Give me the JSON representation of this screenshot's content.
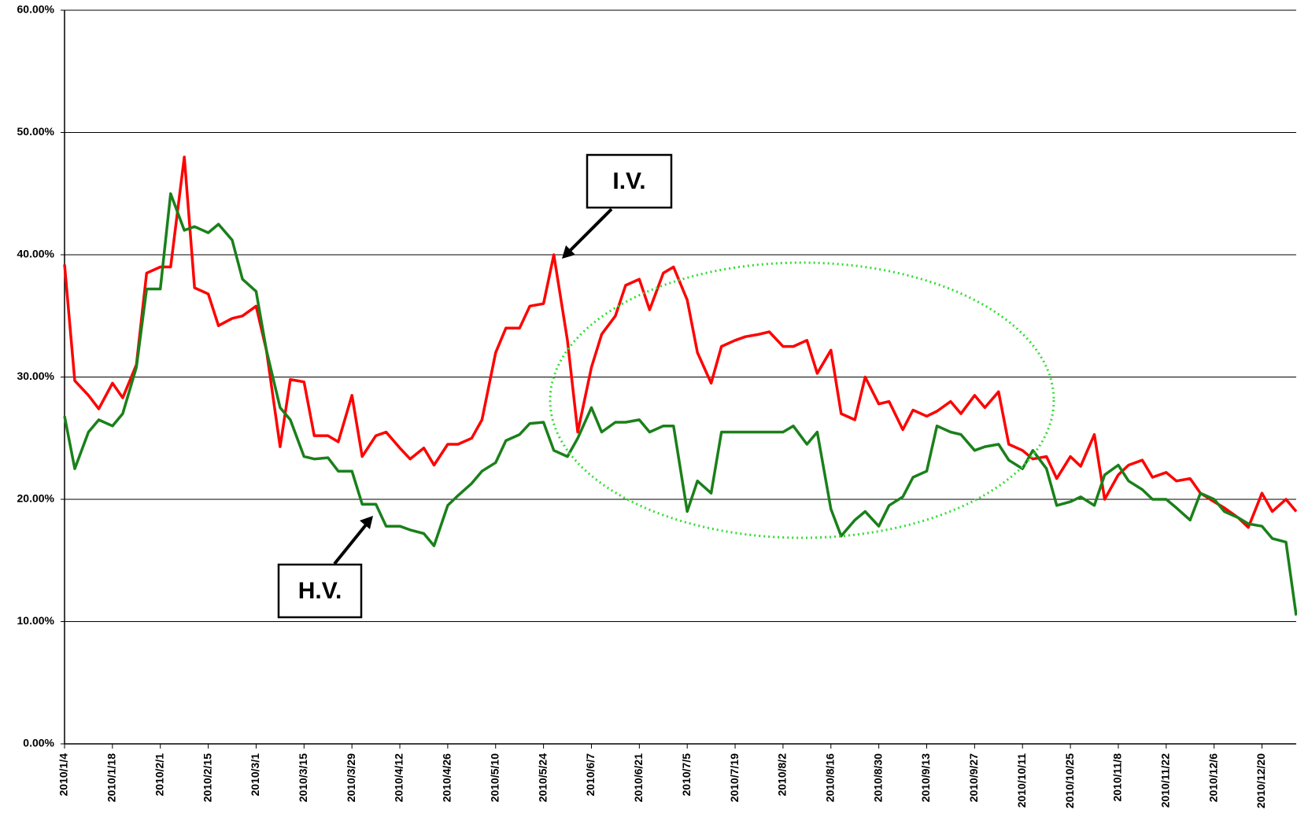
{
  "chart_data": {
    "type": "line",
    "x": [
      "2010/1/4",
      "2010/1/7",
      "2010/1/11",
      "2010/1/14",
      "2010/1/18",
      "2010/1/21",
      "2010/1/25",
      "2010/1/28",
      "2010/2/1",
      "2010/2/4",
      "2010/2/8",
      "2010/2/11",
      "2010/2/15",
      "2010/2/18",
      "2010/2/22",
      "2010/2/25",
      "2010/3/1",
      "2010/3/4",
      "2010/3/8",
      "2010/3/11",
      "2010/3/15",
      "2010/3/18",
      "2010/3/22",
      "2010/3/25",
      "2010/3/29",
      "2010/4/1",
      "2010/4/5",
      "2010/4/8",
      "2010/4/12",
      "2010/4/15",
      "2010/4/19",
      "2010/4/22",
      "2010/4/26",
      "2010/4/29",
      "2010/5/3",
      "2010/5/6",
      "2010/5/10",
      "2010/5/13",
      "2010/5/17",
      "2010/5/20",
      "2010/5/24",
      "2010/5/27",
      "2010/5/31",
      "2010/6/3",
      "2010/6/7",
      "2010/6/10",
      "2010/6/14",
      "2010/6/17",
      "2010/6/21",
      "2010/6/24",
      "2010/6/28",
      "2010/7/1",
      "2010/7/5",
      "2010/7/8",
      "2010/7/12",
      "2010/7/15",
      "2010/7/19",
      "2010/7/22",
      "2010/7/26",
      "2010/7/29",
      "2010/8/2",
      "2010/8/5",
      "2010/8/9",
      "2010/8/12",
      "2010/8/16",
      "2010/8/19",
      "2010/8/23",
      "2010/8/26",
      "2010/8/30",
      "2010/9/2",
      "2010/9/6",
      "2010/9/9",
      "2010/9/13",
      "2010/9/16",
      "2010/9/20",
      "2010/9/23",
      "2010/9/27",
      "2010/9/30",
      "2010/10/4",
      "2010/10/7",
      "2010/10/11",
      "2010/10/14",
      "2010/10/18",
      "2010/10/21",
      "2010/10/25",
      "2010/10/28",
      "2010/11/1",
      "2010/11/4",
      "2010/11/8",
      "2010/11/11",
      "2010/11/15",
      "2010/11/18",
      "2010/11/22",
      "2010/11/25",
      "2010/11/29",
      "2010/12/2",
      "2010/12/6",
      "2010/12/9",
      "2010/12/13",
      "2010/12/16",
      "2010/12/20",
      "2010/12/23",
      "2010/12/27",
      "2010/12/30"
    ],
    "series": [
      {
        "name": "I.V.",
        "color": "#ff0000",
        "values": [
          39.2,
          29.7,
          28.5,
          27.4,
          29.5,
          28.3,
          31,
          38.5,
          39,
          39,
          48,
          37.3,
          36.8,
          34.2,
          34.8,
          35,
          35.8,
          32.2,
          24.3,
          29.8,
          29.6,
          25.2,
          25.2,
          24.7,
          28.5,
          23.5,
          25.2,
          25.5,
          24.2,
          23.3,
          24.2,
          22.8,
          24.5,
          24.5,
          25,
          26.5,
          32,
          34,
          34,
          35.8,
          36,
          40,
          33,
          25.5,
          30.8,
          33.5,
          35,
          37.5,
          38,
          35.5,
          38.5,
          39,
          36.3,
          32,
          29.5,
          32.5,
          33,
          33.3,
          33.5,
          33.7,
          32.5,
          32.5,
          33,
          30.3,
          32.2,
          27,
          26.5,
          30,
          27.8,
          28,
          25.7,
          27.3,
          26.8,
          27.2,
          28,
          27,
          28.5,
          27.5,
          28.8,
          24.5,
          24,
          23.3,
          23.5,
          21.7,
          23.5,
          22.7,
          25.3,
          20,
          22,
          22.8,
          23.2,
          21.8,
          22.2,
          21.5,
          21.7,
          20.5,
          19.8,
          19.3,
          18.5,
          17.7,
          20.5,
          19,
          20,
          19
        ]
      },
      {
        "name": "H.V.",
        "color": "#1a801a",
        "values": [
          26.8,
          22.5,
          25.5,
          26.5,
          26,
          27,
          30.8,
          37.2,
          37.2,
          45,
          42,
          42.3,
          41.8,
          42.5,
          41.2,
          38,
          37,
          32.2,
          27.5,
          26.5,
          23.5,
          23.3,
          23.4,
          22.3,
          22.3,
          19.6,
          19.6,
          17.8,
          17.8,
          17.5,
          17.2,
          16.2,
          19.5,
          20.3,
          21.3,
          22.3,
          23,
          24.8,
          25.3,
          26.2,
          26.3,
          24,
          23.5,
          25,
          27.5,
          25.5,
          26.3,
          26.3,
          26.5,
          25.5,
          26,
          26,
          19,
          21.5,
          20.5,
          25.5,
          25.5,
          25.5,
          25.5,
          25.5,
          25.5,
          26,
          24.5,
          25.5,
          19.2,
          17,
          18.3,
          19,
          17.8,
          19.5,
          20.2,
          21.8,
          22.3,
          26,
          25.5,
          25.3,
          24,
          24.3,
          24.5,
          23.2,
          22.5,
          24,
          22.5,
          19.5,
          19.8,
          20.2,
          19.5,
          22,
          22.8,
          21.5,
          20.8,
          20,
          20,
          19.3,
          18.3,
          20.5,
          20,
          19,
          18.5,
          18,
          17.8,
          16.8,
          16.5,
          10.5
        ]
      }
    ],
    "xlim": [
      "2010/1/4",
      "2010/12/30"
    ],
    "xticks": [
      "2010/1/4",
      "2010/1/18",
      "2010/2/1",
      "2010/2/15",
      "2010/3/1",
      "2010/3/15",
      "2010/3/29",
      "2010/4/12",
      "2010/4/26",
      "2010/5/10",
      "2010/5/24",
      "2010/6/7",
      "2010/6/21",
      "2010/7/5",
      "2010/7/19",
      "2010/8/2",
      "2010/8/16",
      "2010/8/30",
      "2010/9/13",
      "2010/9/27",
      "2010/10/11",
      "2010/10/25",
      "2010/11/8",
      "2010/11/22",
      "2010/12/6",
      "2010/12/20"
    ],
    "ylim": [
      0,
      60
    ],
    "yticks": [
      {
        "value": 0,
        "label": "0.00%"
      },
      {
        "value": 10,
        "label": "10.00%"
      },
      {
        "value": 20,
        "label": "20.00%"
      },
      {
        "value": 30,
        "label": "30.00%"
      },
      {
        "value": 40,
        "label": "40.00%"
      },
      {
        "value": 50,
        "label": "50.00%"
      },
      {
        "value": 60,
        "label": "60.00%"
      }
    ],
    "grid": true
  }
}
